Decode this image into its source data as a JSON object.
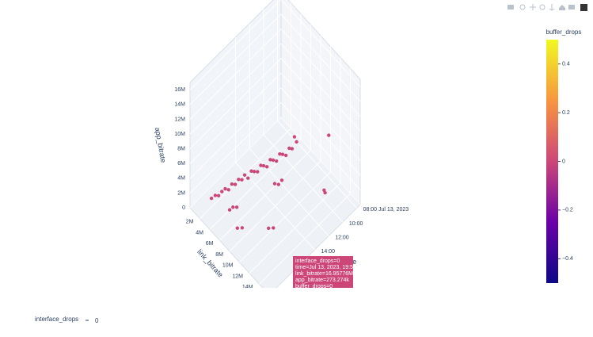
{
  "chart_data": {
    "type": "scatter3d",
    "x_title": "time",
    "y_title": "link_bitrate",
    "z_title": "app_bitrate",
    "xlim": [
      "2023-07-13 07:30",
      "2023-07-13 20:30"
    ],
    "xticks": [
      {
        "value": "2023-07-13 08:00",
        "label": "08:00 Jul 13, 2023"
      },
      {
        "value": "2023-07-13 10:00",
        "label": "10:00"
      },
      {
        "value": "2023-07-13 12:00",
        "label": "12:00"
      },
      {
        "value": "2023-07-13 14:00",
        "label": "14:00"
      }
    ],
    "ylim": [
      0,
      16000000
    ],
    "yticks": [
      {
        "value": 2000000,
        "label": "2M"
      },
      {
        "value": 4000000,
        "label": "4M"
      },
      {
        "value": 6000000,
        "label": "6M"
      },
      {
        "value": 8000000,
        "label": "8M"
      },
      {
        "value": 10000000,
        "label": "10M"
      },
      {
        "value": 12000000,
        "label": "12M"
      },
      {
        "value": 14000000,
        "label": "14M"
      }
    ],
    "zlim": [
      0,
      17000000
    ],
    "zticks": [
      0,
      {
        "value": 2000000,
        "label": "2M"
      },
      {
        "value": 4000000,
        "label": "4M"
      },
      {
        "value": 6000000,
        "label": "6M"
      },
      {
        "value": 8000000,
        "label": "8M"
      },
      {
        "value": 10000000,
        "label": "10M"
      },
      {
        "value": 12000000,
        "label": "12M"
      },
      {
        "value": 14000000,
        "label": "14M"
      },
      {
        "value": 16000000,
        "label": "16M"
      }
    ],
    "marker_color": "#cc4778",
    "x": [
      "2023-07-13 18:30",
      "2023-07-13 18:10",
      "2023-07-13 17:50",
      "2023-07-13 17:30",
      "2023-07-13 17:10",
      "2023-07-13 16:50",
      "2023-07-13 16:30",
      "2023-07-13 16:10",
      "2023-07-13 15:50",
      "2023-07-13 15:30",
      "2023-07-13 15:10",
      "2023-07-13 14:50",
      "2023-07-13 14:30",
      "2023-07-13 14:10",
      "2023-07-13 13:50",
      "2023-07-13 13:30",
      "2023-07-13 13:10",
      "2023-07-13 12:50",
      "2023-07-13 12:30",
      "2023-07-13 12:10",
      "2023-07-13 11:50",
      "2023-07-13 11:30",
      "2023-07-13 11:10",
      "2023-07-13 10:50",
      "2023-07-13 10:30",
      "2023-07-13 10:10",
      "2023-07-13 13:00",
      "2023-07-13 12:40",
      "2023-07-13 12:20",
      "2023-07-13 17:40",
      "2023-07-13 17:20",
      "2023-07-13 17:00",
      "2023-07-13 18:20",
      "2023-07-13 18:00",
      "2023-07-13 09:50",
      "2023-07-13 09:40",
      "2023-07-13 07:45",
      "2023-07-13 09:50",
      "2023-07-13 09:50",
      "2023-07-13 16:00",
      "2023-07-13 15:40"
    ],
    "y": [
      1500000,
      1800000,
      2000000,
      2200000,
      2400000,
      2600000,
      2800000,
      3000000,
      3200000,
      3400000,
      3500000,
      3700000,
      3900000,
      4000000,
      4200000,
      4400000,
      4500000,
      4700000,
      4900000,
      5000000,
      5200000,
      5400000,
      5500000,
      5700000,
      5900000,
      6000000,
      6500000,
      6800000,
      7000000,
      4000000,
      4200000,
      4500000,
      6500000,
      7000000,
      6000000,
      6200000,
      10000000,
      12000000,
      12200000,
      9500000,
      10000000
    ],
    "z": [
      500000,
      800000,
      600000,
      1000000,
      1200000,
      900000,
      1500000,
      1300000,
      1800000,
      1600000,
      2000000,
      1400000,
      2200000,
      1900000,
      1700000,
      2400000,
      2100000,
      1800000,
      2600000,
      2300000,
      2000000,
      2800000,
      2500000,
      2200000,
      3000000,
      2700000,
      1000000,
      800000,
      1200000,
      0,
      200000,
      100000,
      0,
      100000,
      4000000,
      3300000,
      5200000,
      1200000,
      1000000,
      0,
      100000
    ],
    "colorbar_title": "buffer_drops",
    "clim": [
      -0.5,
      0.5
    ],
    "cticks": [
      {
        "value": -0.4,
        "label": "−0.4"
      },
      {
        "value": -0.2,
        "label": "−0.2"
      },
      0,
      0.2,
      0.4
    ],
    "tooltip": [
      "interface_drops=0",
      "time=Jul 13, 2023, 19:52",
      "link_bitrate=16.95776M",
      "app_bitrate=273.274k",
      "buffer_drops=0"
    ],
    "slider_label": "interface_drops",
    "slider_value": 0
  }
}
